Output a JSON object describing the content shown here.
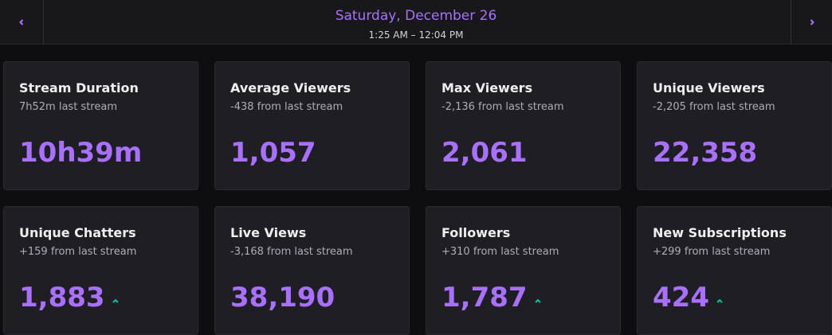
{
  "header": {
    "date": "Saturday, December 26",
    "time_range": "1:25 AM – 12:04 PM"
  },
  "cards": [
    {
      "title": "Stream Duration",
      "subtitle": "7h52m last stream",
      "value": "10h39m"
    },
    {
      "title": "Average Viewers",
      "subtitle": "-438 from last stream",
      "value": "1,057"
    },
    {
      "title": "Max Viewers",
      "subtitle": "-2,136 from last stream",
      "value": "2,061"
    },
    {
      "title": "Unique Viewers",
      "subtitle": "-2,205 from last stream",
      "value": "22,358"
    },
    {
      "title": "Unique Chatters",
      "subtitle": "+159 from last stream",
      "value": "1,883"
    },
    {
      "title": "Live Views",
      "subtitle": "-3,168 from last stream",
      "value": "38,190"
    },
    {
      "title": "Followers",
      "subtitle": "+310 from last stream",
      "value": "1,787"
    },
    {
      "title": "New Subscriptions",
      "subtitle": "+299 from last stream",
      "value": "424"
    }
  ]
}
